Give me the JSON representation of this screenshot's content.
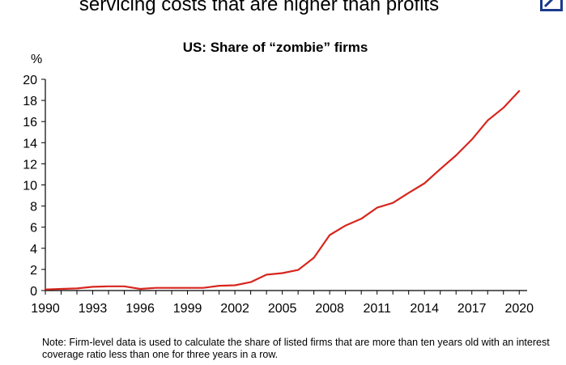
{
  "headline": "servicing costs that are higher than profits",
  "note": "Note: Firm-level data is used to calculate the share of listed firms that are more than ten years old with an interest coverage ratio less than one for three years in a row.",
  "colors": {
    "line": "#d7261e",
    "axis": "#000000",
    "logo": "#1a3a8c"
  },
  "icons": {
    "logo": "deutsche-bank-logo-icon"
  },
  "chart_data": {
    "type": "line",
    "title": "US: Share of “zombie” firms",
    "ylabel": "%",
    "xlabel": "",
    "xlim": [
      1990,
      2020.5
    ],
    "ylim": [
      0,
      20
    ],
    "grid": false,
    "legend": "none",
    "x_ticks": [
      1990,
      1993,
      1996,
      1999,
      2002,
      2005,
      2008,
      2011,
      2014,
      2017,
      2020
    ],
    "y_ticks": [
      0,
      2,
      4,
      6,
      8,
      10,
      12,
      14,
      16,
      18,
      20
    ],
    "series": [
      {
        "x": [
          1990,
          1991,
          1992,
          1993,
          1994,
          1995,
          1996,
          1997,
          1998,
          1999,
          2000,
          2001,
          2002,
          2003,
          2004,
          2005,
          2006,
          2007,
          2008,
          2009,
          2010,
          2011,
          2012,
          2013,
          2014,
          2015,
          2016,
          2017,
          2018,
          2019,
          2020
        ],
        "values": [
          0.1,
          0.15,
          0.2,
          0.35,
          0.4,
          0.4,
          0.15,
          0.25,
          0.25,
          0.25,
          0.25,
          0.45,
          0.5,
          0.8,
          1.5,
          1.65,
          1.95,
          3.1,
          5.25,
          6.15,
          6.8,
          7.85,
          8.3,
          9.25,
          10.15,
          11.5,
          12.8,
          14.3,
          16.1,
          17.3,
          18.9
        ]
      }
    ]
  }
}
